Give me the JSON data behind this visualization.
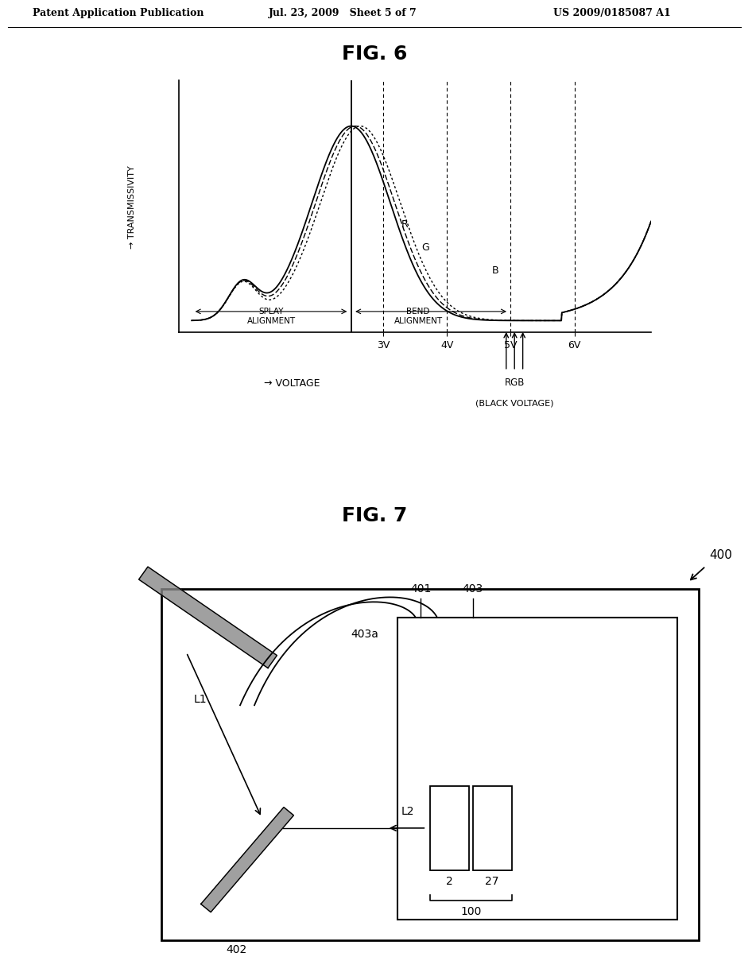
{
  "header_left": "Patent Application Publication",
  "header_center": "Jul. 23, 2009   Sheet 5 of 7",
  "header_right": "US 2009/0185087 A1",
  "fig6_title": "FIG. 6",
  "fig7_title": "FIG. 7",
  "bg_color": "#ffffff",
  "text_color": "#000000"
}
